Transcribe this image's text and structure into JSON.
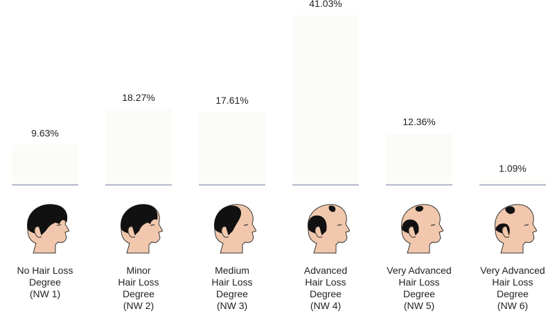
{
  "chart_data": {
    "type": "bar",
    "title": "",
    "xlabel": "",
    "ylabel": "",
    "ylim": [
      0,
      41.03
    ],
    "grid": false,
    "legend": "none",
    "value_suffix": "%",
    "categories": [
      "No Hair Loss\nDegree\n(NW 1)",
      "Minor\nHair Loss\nDegree\n(NW 2)",
      "Medium\nHair Loss\nDegree\n(NW 3)",
      "Advanced\nHair Loss\nDegree\n(NW 4)",
      "Very Advanced\nHair Loss\nDegree\n(NW 5)",
      "Very Advanced\nHair Loss\nDegree\n(NW 6)"
    ],
    "values": [
      9.63,
      18.27,
      17.61,
      41.03,
      12.36,
      1.09
    ],
    "value_labels": [
      "9.63%",
      "18.27%",
      "17.61%",
      "41.03%",
      "12.36%",
      "1.09%"
    ],
    "icons": [
      "head-nw1-icon",
      "head-nw2-icon",
      "head-nw3-icon",
      "head-nw4-icon",
      "head-nw5-icon",
      "head-nw6-icon"
    ],
    "colors": {
      "bar": "#fbfbf8",
      "baseline": "#8a8fb0",
      "skin": "#f1c8ad",
      "hair": "#111111",
      "outline": "#333333"
    }
  }
}
